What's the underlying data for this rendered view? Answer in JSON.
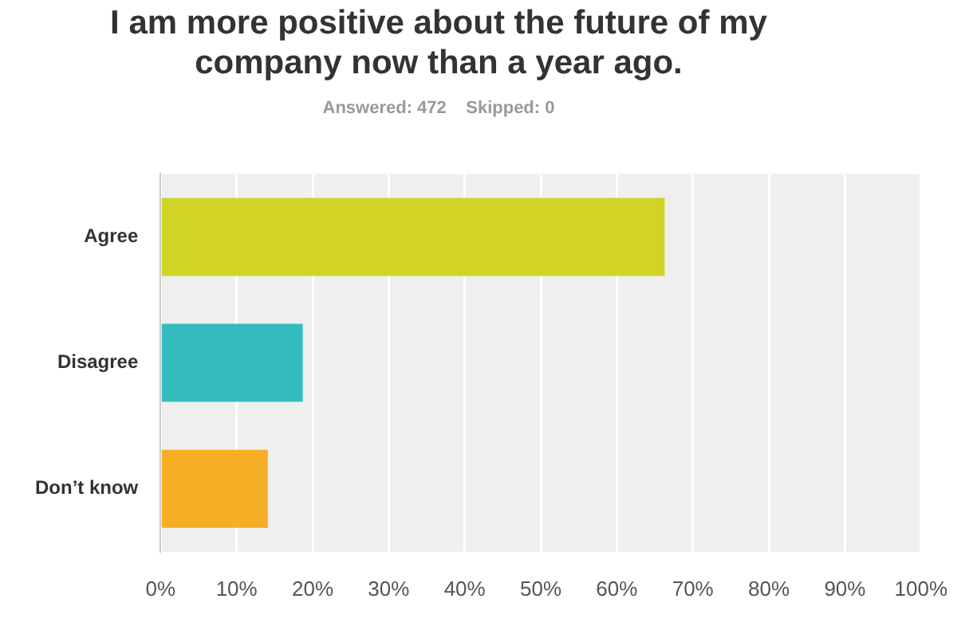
{
  "chart_data": {
    "type": "bar",
    "orientation": "horizontal",
    "title": "I am more positive about the future of my company now than a year ago.",
    "subtitle": "Answered: 472    Skipped: 0",
    "categories": [
      "Agree",
      "Disagree",
      "Don’t know"
    ],
    "values": [
      66.3,
      18.7,
      14.1
    ],
    "colors": [
      "#cfd426",
      "#33bdbf",
      "#f6ae24"
    ],
    "xlim": [
      0,
      100
    ],
    "xticks": [
      {
        "value": 0,
        "label": "0%"
      },
      {
        "value": 10,
        "label": "10%"
      },
      {
        "value": 20,
        "label": "20%"
      },
      {
        "value": 30,
        "label": "30%"
      },
      {
        "value": 40,
        "label": "40%"
      },
      {
        "value": 50,
        "label": "50%"
      },
      {
        "value": 60,
        "label": "60%"
      },
      {
        "value": 70,
        "label": "70%"
      },
      {
        "value": 80,
        "label": "80%"
      },
      {
        "value": 90,
        "label": "90%"
      },
      {
        "value": 100,
        "label": "100%"
      }
    ],
    "grid": "x",
    "legend": false
  }
}
